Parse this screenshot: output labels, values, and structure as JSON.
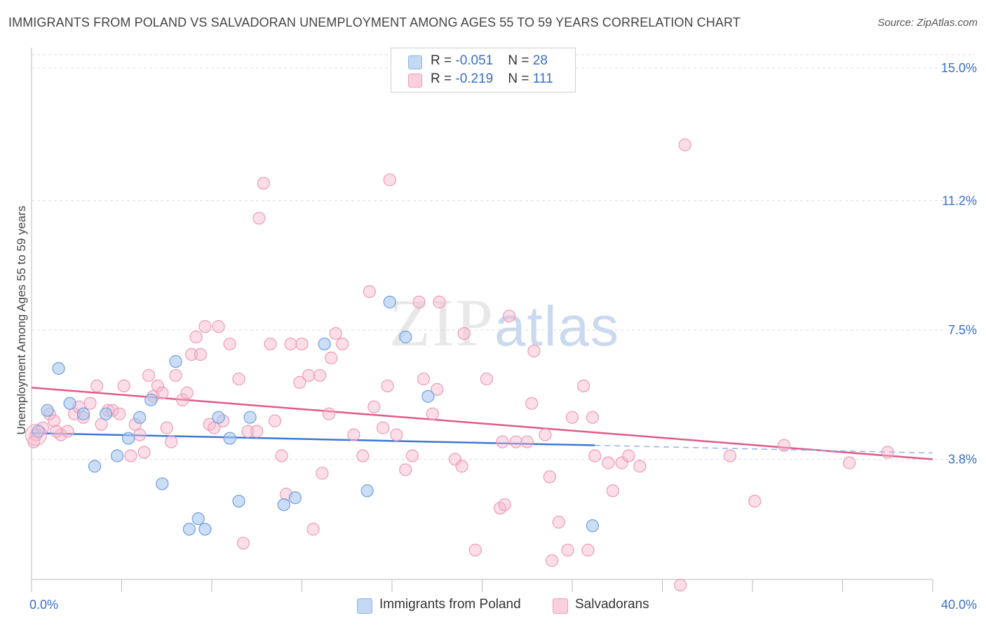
{
  "header": {
    "title": "IMMIGRANTS FROM POLAND VS SALVADORAN UNEMPLOYMENT AMONG AGES 55 TO 59 YEARS CORRELATION CHART",
    "source": "Source: ZipAtlas.com"
  },
  "watermark": {
    "zip": "ZIP",
    "atlas": "atlas"
  },
  "legend": {
    "rows": [
      {
        "r_label": "R = ",
        "r_value": "-0.051",
        "n_label": "N = ",
        "n_value": "28",
        "color": "#a9c8f0"
      },
      {
        "r_label": "R = ",
        "r_value": "-0.219",
        "n_label": "N = ",
        "n_value": "111",
        "color": "#f7b6cb"
      }
    ]
  },
  "bottom_legend": [
    {
      "label": "Immigrants from Poland",
      "color": "#a9c8f0"
    },
    {
      "label": "Salvadorans",
      "color": "#f7b6cb"
    }
  ],
  "chart_data": {
    "type": "scatter",
    "title": "IMMIGRANTS FROM POLAND VS SALVADORAN UNEMPLOYMENT AMONG AGES 55 TO 59 YEARS CORRELATION CHART",
    "xlabel": "",
    "ylabel": "Unemployment Among Ages 55 to 59 years",
    "xlim": [
      0,
      40
    ],
    "ylim": [
      0,
      15.5
    ],
    "x_tick_labels": [
      "0.0%",
      "40.0%"
    ],
    "y_ticks": [
      3.8,
      7.5,
      11.2,
      15.0
    ],
    "y_tick_labels": [
      "3.8%",
      "7.5%",
      "11.2%",
      "15.0%"
    ],
    "grid": true,
    "colors": {
      "poland": "#3a78d4",
      "salvadoran": "#e05a8a",
      "poland_fill": "#a9c8f0",
      "salvadoran_fill": "#f7b6cb",
      "tick_label": "#3a6fc4"
    },
    "series": [
      {
        "name": "Immigrants from Poland",
        "points": [
          [
            0.3,
            4.6
          ],
          [
            0.7,
            5.2
          ],
          [
            1.2,
            6.4
          ],
          [
            1.7,
            5.4
          ],
          [
            2.3,
            5.1
          ],
          [
            2.8,
            3.6
          ],
          [
            3.3,
            5.1
          ],
          [
            3.8,
            3.9
          ],
          [
            4.3,
            4.4
          ],
          [
            4.8,
            5.0
          ],
          [
            5.3,
            5.5
          ],
          [
            5.8,
            3.1
          ],
          [
            6.4,
            6.6
          ],
          [
            7.0,
            1.8
          ],
          [
            7.4,
            2.1
          ],
          [
            7.7,
            1.8
          ],
          [
            8.3,
            5.0
          ],
          [
            8.8,
            4.4
          ],
          [
            9.2,
            2.6
          ],
          [
            9.7,
            5.0
          ],
          [
            11.2,
            2.5
          ],
          [
            11.7,
            2.7
          ],
          [
            13.0,
            7.1
          ],
          [
            14.9,
            2.9
          ],
          [
            15.9,
            8.3
          ],
          [
            16.6,
            7.3
          ],
          [
            17.6,
            5.6
          ],
          [
            24.9,
            1.9
          ]
        ],
        "trend": {
          "x": [
            0.0,
            25.0
          ],
          "y": [
            4.55,
            4.2
          ]
        },
        "trend_dashed": {
          "x": [
            25.0,
            40.0
          ],
          "y": [
            4.2,
            3.98
          ]
        }
      },
      {
        "name": "Salvadorans",
        "points": [
          [
            0.2,
            4.5
          ],
          [
            0.5,
            4.7
          ],
          [
            0.8,
            5.1
          ],
          [
            1.0,
            4.9
          ],
          [
            1.3,
            4.5
          ],
          [
            1.6,
            4.6
          ],
          [
            1.9,
            5.1
          ],
          [
            2.1,
            5.3
          ],
          [
            2.3,
            5.0
          ],
          [
            2.6,
            5.4
          ],
          [
            2.9,
            5.9
          ],
          [
            3.1,
            4.8
          ],
          [
            3.4,
            5.2
          ],
          [
            3.6,
            5.2
          ],
          [
            3.9,
            5.1
          ],
          [
            4.1,
            5.9
          ],
          [
            4.4,
            3.9
          ],
          [
            4.6,
            4.8
          ],
          [
            4.8,
            4.5
          ],
          [
            5.0,
            4.0
          ],
          [
            5.2,
            6.2
          ],
          [
            5.4,
            5.6
          ],
          [
            5.6,
            5.9
          ],
          [
            5.8,
            5.7
          ],
          [
            6.0,
            4.7
          ],
          [
            6.2,
            4.3
          ],
          [
            6.4,
            6.2
          ],
          [
            6.7,
            5.5
          ],
          [
            6.9,
            5.7
          ],
          [
            7.1,
            6.8
          ],
          [
            7.3,
            7.3
          ],
          [
            7.5,
            6.8
          ],
          [
            7.7,
            7.6
          ],
          [
            7.9,
            4.8
          ],
          [
            8.1,
            4.7
          ],
          [
            8.3,
            7.6
          ],
          [
            8.5,
            4.9
          ],
          [
            8.8,
            7.1
          ],
          [
            9.2,
            6.1
          ],
          [
            9.4,
            1.4
          ],
          [
            9.6,
            4.6
          ],
          [
            10.0,
            4.6
          ],
          [
            10.1,
            10.7
          ],
          [
            10.3,
            11.7
          ],
          [
            10.6,
            7.1
          ],
          [
            10.8,
            4.9
          ],
          [
            11.1,
            3.9
          ],
          [
            11.3,
            2.8
          ],
          [
            11.5,
            7.1
          ],
          [
            11.9,
            6.0
          ],
          [
            12.0,
            7.1
          ],
          [
            12.3,
            6.2
          ],
          [
            12.5,
            1.8
          ],
          [
            12.8,
            6.2
          ],
          [
            12.9,
            3.4
          ],
          [
            13.2,
            5.1
          ],
          [
            13.3,
            6.7
          ],
          [
            13.5,
            7.4
          ],
          [
            13.8,
            7.1
          ],
          [
            14.3,
            4.5
          ],
          [
            14.7,
            3.9
          ],
          [
            15.0,
            8.6
          ],
          [
            15.2,
            5.3
          ],
          [
            15.6,
            4.7
          ],
          [
            15.8,
            5.9
          ],
          [
            15.9,
            11.8
          ],
          [
            16.2,
            4.5
          ],
          [
            16.6,
            3.5
          ],
          [
            16.9,
            3.9
          ],
          [
            17.2,
            8.3
          ],
          [
            17.4,
            6.1
          ],
          [
            17.8,
            5.1
          ],
          [
            18.0,
            5.8
          ],
          [
            18.1,
            8.3
          ],
          [
            18.8,
            3.8
          ],
          [
            19.1,
            3.6
          ],
          [
            19.2,
            7.4
          ],
          [
            19.7,
            1.2
          ],
          [
            20.2,
            6.1
          ],
          [
            20.8,
            2.4
          ],
          [
            20.9,
            4.3
          ],
          [
            21.0,
            2.5
          ],
          [
            21.2,
            7.9
          ],
          [
            21.5,
            4.3
          ],
          [
            22.0,
            4.3
          ],
          [
            22.2,
            5.4
          ],
          [
            22.3,
            6.9
          ],
          [
            22.8,
            4.5
          ],
          [
            23.0,
            3.3
          ],
          [
            23.1,
            0.9
          ],
          [
            23.4,
            2.0
          ],
          [
            23.8,
            1.2
          ],
          [
            24.0,
            5.0
          ],
          [
            24.5,
            5.9
          ],
          [
            24.7,
            1.2
          ],
          [
            24.9,
            5.0
          ],
          [
            25.0,
            3.9
          ],
          [
            25.6,
            3.7
          ],
          [
            25.8,
            2.9
          ],
          [
            26.2,
            3.7
          ],
          [
            26.5,
            3.9
          ],
          [
            27.0,
            3.6
          ],
          [
            28.8,
            0.2
          ],
          [
            29.0,
            12.8
          ],
          [
            31.0,
            3.9
          ],
          [
            32.1,
            2.6
          ],
          [
            33.4,
            4.2
          ],
          [
            36.3,
            3.7
          ],
          [
            38.0,
            4.0
          ],
          [
            0.1,
            4.3
          ],
          [
            1.1,
            4.6
          ]
        ],
        "trend": {
          "x": [
            0.0,
            40.0
          ],
          "y": [
            5.85,
            3.8
          ]
        }
      }
    ]
  }
}
